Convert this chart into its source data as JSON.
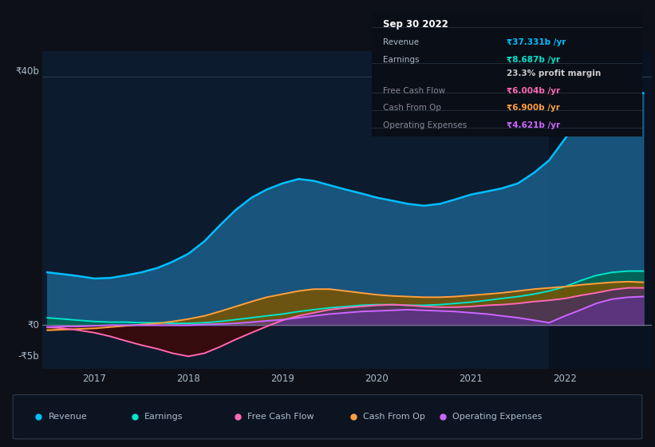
{
  "bg_color": "#0d1117",
  "chart_bg": "#0d1b2e",
  "highlight_bg": "#0a1525",
  "zero_line_color": "#4a5a6a",
  "grid_color": "#2a3a4a",
  "ylim": [
    -7,
    44
  ],
  "xlim_start": 2016.45,
  "xlim_end": 2022.92,
  "highlight_start": 2021.83,
  "highlight_end": 2022.92,
  "xticks": [
    2017,
    2018,
    2019,
    2020,
    2021,
    2022
  ],
  "y40_label": "₹40b",
  "y0_label": "₹0",
  "yn5_label": "-₹5b",
  "x": [
    2016.5,
    2016.67,
    2016.83,
    2017.0,
    2017.17,
    2017.33,
    2017.5,
    2017.67,
    2017.83,
    2018.0,
    2018.17,
    2018.33,
    2018.5,
    2018.67,
    2018.83,
    2019.0,
    2019.17,
    2019.33,
    2019.5,
    2019.67,
    2019.83,
    2020.0,
    2020.17,
    2020.33,
    2020.5,
    2020.67,
    2020.83,
    2021.0,
    2021.17,
    2021.33,
    2021.5,
    2021.67,
    2021.83,
    2022.0,
    2022.17,
    2022.33,
    2022.5,
    2022.67,
    2022.83
  ],
  "revenue": [
    8.5,
    8.2,
    7.9,
    7.5,
    7.6,
    8.0,
    8.5,
    9.2,
    10.2,
    11.5,
    13.5,
    16.0,
    18.5,
    20.5,
    21.8,
    22.8,
    23.5,
    23.2,
    22.5,
    21.8,
    21.2,
    20.5,
    20.0,
    19.5,
    19.2,
    19.5,
    20.2,
    21.0,
    21.5,
    22.0,
    22.8,
    24.5,
    26.5,
    30.0,
    33.5,
    36.0,
    37.5,
    37.8,
    37.3
  ],
  "earnings": [
    1.2,
    1.0,
    0.8,
    0.6,
    0.5,
    0.5,
    0.4,
    0.4,
    0.3,
    0.3,
    0.4,
    0.6,
    0.9,
    1.2,
    1.5,
    1.8,
    2.2,
    2.5,
    2.8,
    3.0,
    3.2,
    3.3,
    3.3,
    3.2,
    3.2,
    3.3,
    3.5,
    3.7,
    4.0,
    4.3,
    4.6,
    5.0,
    5.5,
    6.2,
    7.2,
    8.0,
    8.5,
    8.7,
    8.7
  ],
  "free_cash_flow": [
    -0.3,
    -0.5,
    -0.8,
    -1.2,
    -1.8,
    -2.5,
    -3.2,
    -3.8,
    -4.5,
    -5.0,
    -4.5,
    -3.5,
    -2.3,
    -1.2,
    -0.2,
    0.8,
    1.5,
    2.0,
    2.5,
    2.8,
    3.0,
    3.2,
    3.3,
    3.2,
    3.0,
    2.9,
    2.9,
    3.0,
    3.2,
    3.3,
    3.5,
    3.8,
    4.0,
    4.3,
    4.8,
    5.2,
    5.7,
    6.0,
    6.0
  ],
  "cash_from_op": [
    -0.8,
    -0.7,
    -0.6,
    -0.5,
    -0.3,
    -0.1,
    0.1,
    0.3,
    0.6,
    1.0,
    1.5,
    2.2,
    3.0,
    3.8,
    4.5,
    5.0,
    5.5,
    5.8,
    5.8,
    5.5,
    5.2,
    4.9,
    4.7,
    4.6,
    4.5,
    4.5,
    4.6,
    4.8,
    5.0,
    5.2,
    5.5,
    5.8,
    6.0,
    6.2,
    6.5,
    6.7,
    6.9,
    7.0,
    6.9
  ],
  "operating_expenses": [
    -0.3,
    -0.2,
    -0.2,
    -0.1,
    0.0,
    0.0,
    0.0,
    0.0,
    0.0,
    0.0,
    0.1,
    0.2,
    0.3,
    0.5,
    0.7,
    0.9,
    1.2,
    1.5,
    1.8,
    2.0,
    2.2,
    2.3,
    2.4,
    2.5,
    2.4,
    2.3,
    2.2,
    2.0,
    1.8,
    1.5,
    1.2,
    0.8,
    0.4,
    1.5,
    2.5,
    3.5,
    4.2,
    4.5,
    4.6
  ],
  "tooltip_title": "Sep 30 2022",
  "tooltip_rows": [
    {
      "label": "Revenue",
      "value": "₹37.331b /yr",
      "value_color": "#00bfff",
      "dim": false
    },
    {
      "label": "Earnings",
      "value": "₹8.687b /yr",
      "value_color": "#00e5cc",
      "dim": false
    },
    {
      "label": "",
      "value": "23.3% profit margin",
      "value_color": "#cccccc",
      "dim": false
    },
    {
      "label": "Free Cash Flow",
      "value": "₹6.004b /yr",
      "value_color": "#ff69b4",
      "dim": true
    },
    {
      "label": "Cash From Op",
      "value": "₹6.900b /yr",
      "value_color": "#ffa040",
      "dim": true
    },
    {
      "label": "Operating Expenses",
      "value": "₹4.621b /yr",
      "value_color": "#cc66ff",
      "dim": true
    }
  ],
  "legend": [
    {
      "label": "Revenue",
      "color": "#00bfff"
    },
    {
      "label": "Earnings",
      "color": "#00e5cc"
    },
    {
      "label": "Free Cash Flow",
      "color": "#ff69b4"
    },
    {
      "label": "Cash From Op",
      "color": "#ffa040"
    },
    {
      "label": "Operating Expenses",
      "color": "#cc66ff"
    }
  ]
}
